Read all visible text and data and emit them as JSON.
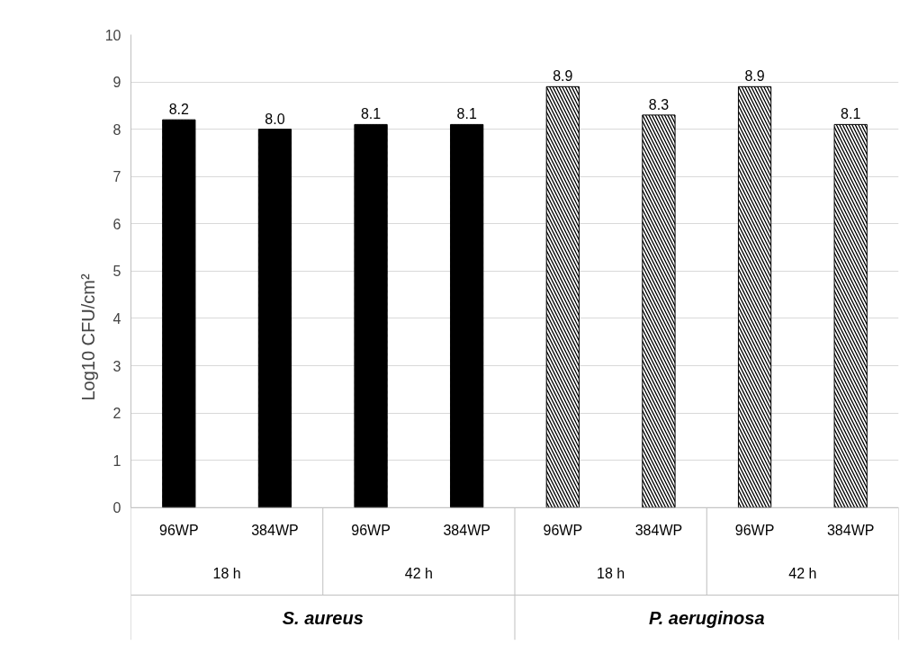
{
  "chart_data": {
    "type": "bar",
    "ylabel": "Log10 CFU/cm²",
    "categories": [
      "96WP",
      "384WP",
      "96WP",
      "384WP",
      "96WP",
      "384WP",
      "96WP",
      "384WP"
    ],
    "values": [
      8.2,
      8.0,
      8.1,
      8.1,
      8.9,
      8.3,
      8.9,
      8.1
    ],
    "colors": [
      "#000000",
      "#000000",
      "#000000",
      "#000000",
      "#ffffff",
      "#ffffff",
      "#ffffff",
      "#ffffff"
    ],
    "value_labels": [
      "8.2",
      "8.0",
      "8.1",
      "8.1",
      "8.9",
      "8.3",
      "8.9",
      "8.1"
    ],
    "ylim": [
      0,
      10
    ],
    "yticks": [
      0,
      1,
      2,
      3,
      4,
      5,
      6,
      7,
      8,
      9,
      10
    ],
    "grid": "y",
    "annotations": [
      "18 h",
      "42 h",
      "18 h",
      "42 h",
      "S. aureus",
      "P. aeruginosa"
    ]
  }
}
